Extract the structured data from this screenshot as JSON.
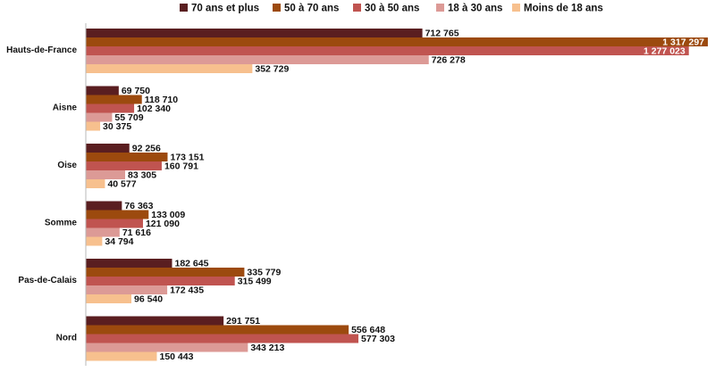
{
  "chart_data": {
    "type": "bar",
    "orientation": "horizontal",
    "title": "",
    "xlabel": "",
    "ylabel": "",
    "grid": false,
    "legend_position": "top",
    "xlim": [
      0,
      1317297
    ],
    "categories": [
      "Hauts-de-France",
      "Aisne",
      "Oise",
      "Somme",
      "Pas-de-Calais",
      "Nord"
    ],
    "series": [
      {
        "name": "70 ans et plus",
        "color": "#5a1e20",
        "values": [
          712765,
          69750,
          92256,
          76363,
          182645,
          291751
        ],
        "labels": [
          "712 765",
          "69 750",
          "92 256",
          "76 363",
          "182 645",
          "291 751"
        ]
      },
      {
        "name": "50 à 70 ans",
        "color": "#9c4a0e",
        "values": [
          1317297,
          118710,
          173151,
          133009,
          335779,
          556648
        ],
        "labels": [
          "1 317 297",
          "118 710",
          "173 151",
          "133 009",
          "335 779",
          "556 648"
        ]
      },
      {
        "name": "30 à 50 ans",
        "color": "#c05450",
        "values": [
          1277023,
          102340,
          160791,
          121090,
          315499,
          577303
        ],
        "labels": [
          "1 277 023",
          "102 340",
          "160 791",
          "121 090",
          "315 499",
          "577 303"
        ]
      },
      {
        "name": "18 à 30 ans",
        "color": "#dc9a96",
        "values": [
          726278,
          55709,
          83305,
          71616,
          172435,
          343213
        ],
        "labels": [
          "726 278",
          "55 709",
          "83 305",
          "71 616",
          "172 435",
          "343 213"
        ]
      },
      {
        "name": "Moins de 18 ans",
        "color": "#f7c08e",
        "values": [
          352729,
          30375,
          40577,
          34794,
          96540,
          150443
        ],
        "labels": [
          "352 729",
          "30 375",
          "40 577",
          "34 794",
          "96 540",
          "150 443"
        ]
      }
    ]
  }
}
